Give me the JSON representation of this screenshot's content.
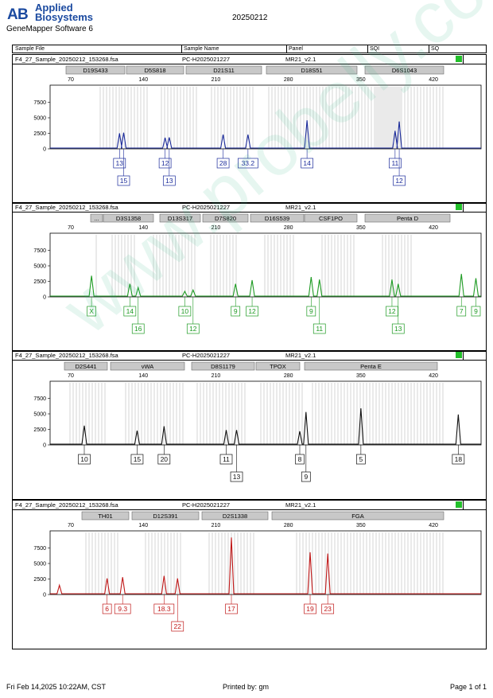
{
  "header": {
    "brand_line1": "Applied",
    "brand_line2": "Biosystems",
    "software": "GeneMapper Software 6",
    "run_date": "20250212"
  },
  "columns": {
    "sample_file": "Sample File",
    "sample_name": "Sample Name",
    "panel": "Panel",
    "sqi": "SQI",
    "sq": "SQ"
  },
  "watermark": "www.probelly.com.cn",
  "x_ticks": [
    70,
    140,
    210,
    280,
    350,
    420
  ],
  "y_ticks": [
    0,
    2500,
    5000,
    7500
  ],
  "panels": [
    {
      "file": "F4_27_Sample_20250212_153268.fsa",
      "sample": "PC-H2025021227",
      "panel": "MR21_v2.1",
      "color": "#1a2a9a",
      "ladders": [
        [
          123,
          150
        ],
        [
          150,
          185
        ],
        [
          200,
          250
        ],
        [
          263,
          320
        ],
        [
          335,
          420
        ],
        [
          420,
          505
        ],
        [
          470,
          560
        ]
      ],
      "loci": [
        {
          "name": "D19S433",
          "x0": 82,
          "x1": 156
        },
        {
          "name": "D5S818",
          "x0": 158,
          "x1": 230
        },
        {
          "name": "D21S11",
          "x0": 233,
          "x1": 328
        },
        {
          "name": "D18S51",
          "x0": 334,
          "x1": 448
        },
        {
          "name": "D6S1043",
          "x0": 458,
          "x1": 557
        }
      ],
      "peaks": [
        {
          "bp": 117,
          "h": 2500,
          "label": "13",
          "row": 0
        },
        {
          "bp": 121,
          "h": 2600,
          "label": "15",
          "row": 1
        },
        {
          "bp": 161,
          "h": 1800,
          "label": "12",
          "row": 0
        },
        {
          "bp": 165,
          "h": 1850,
          "label": "13",
          "row": 1
        },
        {
          "bp": 217,
          "h": 2300,
          "label": "28",
          "row": 0
        },
        {
          "bp": 241,
          "h": 2300,
          "label": "33.2",
          "row": 0
        },
        {
          "bp": 298,
          "h": 4600,
          "label": "14",
          "row": 0
        },
        {
          "bp": 383,
          "h": 2900,
          "label": "11",
          "row": 0
        },
        {
          "bp": 387,
          "h": 4400,
          "label": "12",
          "row": 1
        }
      ]
    },
    {
      "file": "F4_27_Sample_20250212_153268.fsa",
      "sample": "PC-H2025021227",
      "panel": "MR21_v2.1",
      "color": "#1d9a22",
      "ladders": [
        [
          118,
          122
        ],
        [
          138,
          172
        ],
        [
          190,
          245
        ],
        [
          262,
          300
        ],
        [
          330,
          372
        ],
        [
          402,
          448
        ],
        [
          478,
          520
        ]
      ],
      "loci": [
        {
          "name": "...",
          "x0": 113,
          "x1": 128
        },
        {
          "name": "D3S1358",
          "x0": 129,
          "x1": 192
        },
        {
          "name": "D13S317",
          "x0": 200,
          "x1": 251
        },
        {
          "name": "D7S820",
          "x0": 254,
          "x1": 311
        },
        {
          "name": "D16S539",
          "x0": 314,
          "x1": 381
        },
        {
          "name": "CSF1PO",
          "x0": 382,
          "x1": 448
        },
        {
          "name": "Penta D",
          "x0": 458,
          "x1": 565
        }
      ],
      "peaks": [
        {
          "bp": 90,
          "h": 3400,
          "label": "X",
          "row": 0
        },
        {
          "bp": 127,
          "h": 2100,
          "label": "14",
          "row": 0
        },
        {
          "bp": 135,
          "h": 1500,
          "label": "16",
          "row": 1
        },
        {
          "bp": 180,
          "h": 900,
          "label": "10",
          "row": 0
        },
        {
          "bp": 188,
          "h": 1100,
          "label": "12",
          "row": 1
        },
        {
          "bp": 229,
          "h": 2100,
          "label": "9",
          "row": 0
        },
        {
          "bp": 245,
          "h": 2700,
          "label": "12",
          "row": 0
        },
        {
          "bp": 302,
          "h": 3200,
          "label": "9",
          "row": 0
        },
        {
          "bp": 310,
          "h": 2800,
          "label": "11",
          "row": 1
        },
        {
          "bp": 380,
          "h": 2800,
          "label": "12",
          "row": 0
        },
        {
          "bp": 386,
          "h": 2100,
          "label": "13",
          "row": 1
        },
        {
          "bp": 447,
          "h": 3700,
          "label": "7",
          "row": 0
        },
        {
          "bp": 461,
          "h": 3000,
          "label": "9",
          "row": 0
        }
      ]
    },
    {
      "file": "F4_27_Sample_20250212_153268.fsa",
      "sample": "PC-H2025021227",
      "panel": "MR21_v2.1",
      "color": "#111111",
      "ladders": [
        [
          85,
          135
        ],
        [
          155,
          230
        ],
        [
          245,
          310
        ],
        [
          325,
          380
        ],
        [
          390,
          560
        ]
      ],
      "loci": [
        {
          "name": "D2S441",
          "x0": 80,
          "x1": 134
        },
        {
          "name": "vWA",
          "x0": 138,
          "x1": 231
        },
        {
          "name": "D8S1179",
          "x0": 240,
          "x1": 319
        },
        {
          "name": "TPOX",
          "x0": 321,
          "x1": 376
        },
        {
          "name": "Penta E",
          "x0": 382,
          "x1": 549
        }
      ],
      "peaks": [
        {
          "bp": 83,
          "h": 3100,
          "label": "10",
          "row": 0
        },
        {
          "bp": 134,
          "h": 2300,
          "label": "15",
          "row": 0
        },
        {
          "bp": 160,
          "h": 3000,
          "label": "20",
          "row": 0
        },
        {
          "bp": 220,
          "h": 2400,
          "label": "11",
          "row": 0
        },
        {
          "bp": 230,
          "h": 2400,
          "label": "13",
          "row": 1
        },
        {
          "bp": 291,
          "h": 2200,
          "label": "8",
          "row": 0
        },
        {
          "bp": 297,
          "h": 5300,
          "label": "9",
          "row": 1
        },
        {
          "bp": 350,
          "h": 5900,
          "label": "5",
          "row": 0
        },
        {
          "bp": 444,
          "h": 4900,
          "label": "18",
          "row": 0
        }
      ]
    },
    {
      "file": "F4_27_Sample_20250212_153268.fsa",
      "sample": "PC-H2025021227",
      "panel": "MR21_v2.1",
      "color": "#c01818",
      "ladders": [
        [
          105,
          150
        ],
        [
          180,
          230
        ],
        [
          260,
          320
        ],
        [
          370,
          560
        ]
      ],
      "loci": [
        {
          "name": "TH01",
          "x0": 102,
          "x1": 161
        },
        {
          "name": "D12S391",
          "x0": 165,
          "x1": 249
        },
        {
          "name": "D2S1338",
          "x0": 253,
          "x1": 336
        },
        {
          "name": "FGA",
          "x0": 341,
          "x1": 557
        }
      ],
      "peaks": [
        {
          "bp": 59,
          "h": 1500,
          "label": "",
          "row": 0
        },
        {
          "bp": 105,
          "h": 2600,
          "label": "6",
          "row": 0
        },
        {
          "bp": 120,
          "h": 2800,
          "label": "9.3",
          "row": 0
        },
        {
          "bp": 160,
          "h": 3000,
          "label": "18.3",
          "row": 0
        },
        {
          "bp": 173,
          "h": 2600,
          "label": "22",
          "row": 1
        },
        {
          "bp": 225,
          "h": 9200,
          "label": "17",
          "row": 0
        },
        {
          "bp": 301,
          "h": 6800,
          "label": "19",
          "row": 0
        },
        {
          "bp": 318,
          "h": 6600,
          "label": "23",
          "row": 0
        }
      ]
    }
  ],
  "footer": {
    "timestamp": "Fri Feb 14,2025 10:22AM, CST",
    "printed_by": "Printed by: gm",
    "page": "Page 1 of 1"
  }
}
